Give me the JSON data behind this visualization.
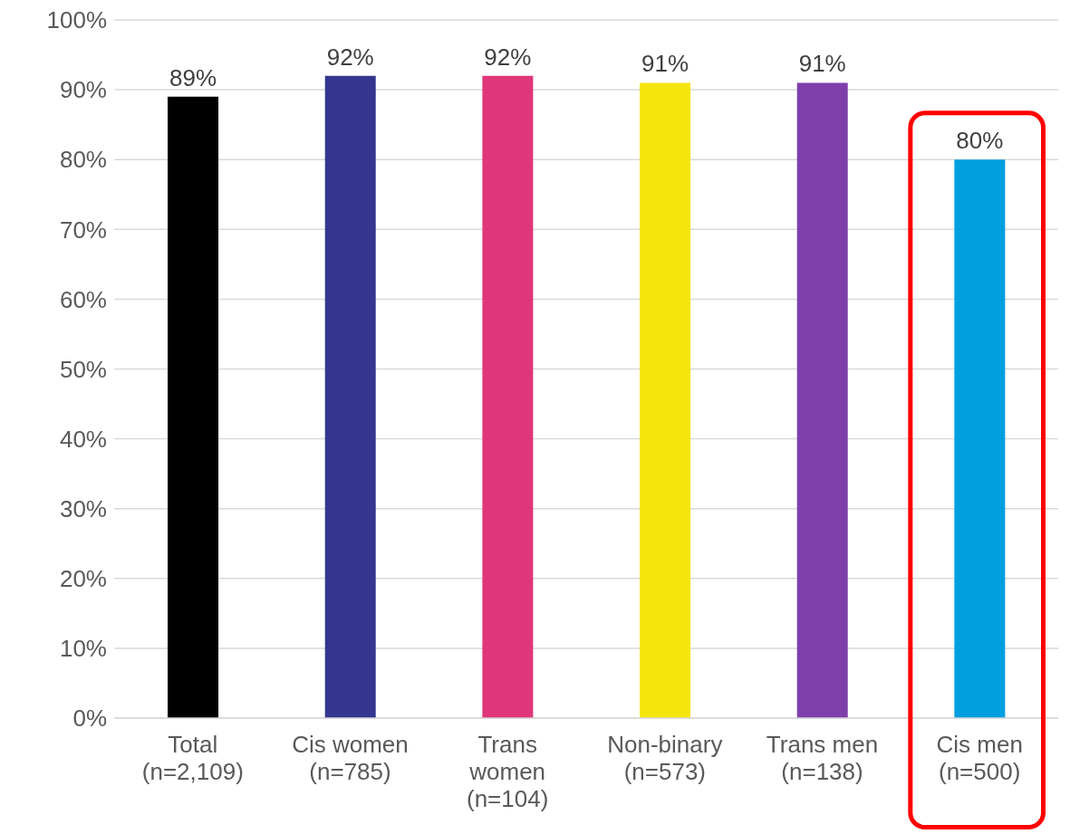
{
  "chart_data": {
    "type": "bar",
    "categories": [
      "Total\n(n=2,109)",
      "Cis women\n(n=785)",
      "Trans\nwomen\n(n=104)",
      "Non-binary\n(n=573)",
      "Trans men\n(n=138)",
      "Cis men\n(n=500)"
    ],
    "values": [
      89,
      92,
      92,
      91,
      91,
      80
    ],
    "colors": [
      "#000000",
      "#35368f",
      "#e0367a",
      "#f5e50d",
      "#7e3fab",
      "#009fe0"
    ],
    "value_labels": [
      "89%",
      "92%",
      "92%",
      "91%",
      "91%",
      "80%"
    ],
    "ylim": [
      0,
      100
    ],
    "yticks": [
      {
        "value": 0,
        "label": "0%"
      },
      {
        "value": 10,
        "label": "10%"
      },
      {
        "value": 20,
        "label": "20%"
      },
      {
        "value": 30,
        "label": "30%"
      },
      {
        "value": 40,
        "label": "40%"
      },
      {
        "value": 50,
        "label": "50%"
      },
      {
        "value": 60,
        "label": "60%"
      },
      {
        "value": 70,
        "label": "70%"
      },
      {
        "value": 80,
        "label": "80%"
      },
      {
        "value": 90,
        "label": "90%"
      },
      {
        "value": 100,
        "label": "100%"
      }
    ],
    "grid": "y"
  }
}
